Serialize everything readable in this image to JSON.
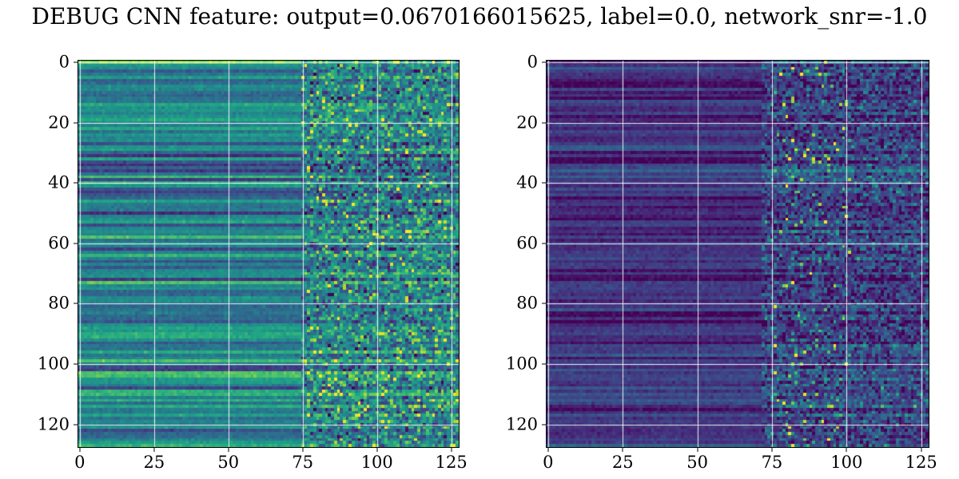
{
  "title": "DEBUG CNN feature: output=0.0670166015625, label=0.0, network_snr=-1.0",
  "figure": {
    "output_value": "0.0670166015625",
    "label_value": "0.0",
    "network_snr_value": "-1.0",
    "background_color": "#ffffff",
    "grid_color": "#ffffff"
  },
  "chart_data": [
    {
      "type": "heatmap",
      "panel": "left",
      "shape": [
        128,
        128
      ],
      "colormap": "viridis",
      "value_range": [
        0,
        1
      ],
      "xticks": [
        0,
        25,
        50,
        75,
        100,
        125
      ],
      "yticks": [
        0,
        20,
        40,
        60,
        80,
        100,
        120
      ],
      "grid": true,
      "description": "128x128 CNN feature map, viridis colormap. Horizontally banded rows in mid-range teal/blue-green tones for columns 0-75; columns 75-128 are noisier with scattered bright green/yellow speckles, strongest around rows 60-70.",
      "synthesis": {
        "seed": 7,
        "row_base_mean": 0.45,
        "row_base_std": 0.12,
        "smooth_noise": 0.035,
        "noisy_start": 75,
        "right_mix": 0.55,
        "right_mean": 0.42,
        "right_noise": 0.17,
        "hot_band": [
          75,
          128
        ],
        "speckle_prob": 0.04,
        "speckle_boost": 0.35
      }
    },
    {
      "type": "heatmap",
      "panel": "right",
      "shape": [
        128,
        128
      ],
      "colormap": "viridis",
      "value_range": [
        0,
        1
      ],
      "xticks": [
        0,
        25,
        50,
        75,
        100,
        125
      ],
      "yticks": [
        0,
        20,
        40,
        60,
        80,
        100,
        120
      ],
      "grid": true,
      "description": "128x128 CNN feature map, viridis colormap. Mostly dark purple/indigo banded rows for columns 0-75; columns 75-105 contain concentrated bright cyan/yellow speckles (notably near rows 40, 52, 85-90, 103-115), fading to dim noisy texture toward column 128.",
      "synthesis": {
        "seed": 13,
        "row_base_mean": 0.14,
        "row_base_std": 0.08,
        "smooth_noise": 0.03,
        "noisy_start": 72,
        "right_mix": 0.6,
        "right_mean": 0.2,
        "right_noise": 0.13,
        "hot_band": [
          75,
          102
        ],
        "speckle_prob": 0.05,
        "speckle_boost": 0.55
      }
    }
  ]
}
